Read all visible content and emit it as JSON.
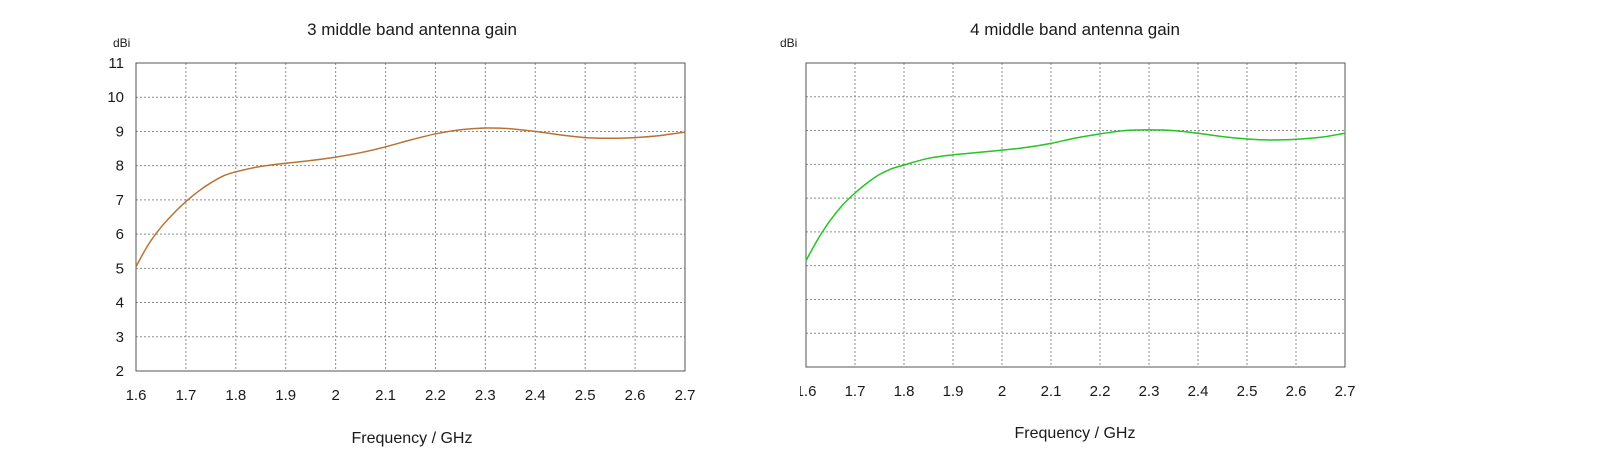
{
  "chart_data": [
    {
      "type": "line",
      "title": "3 middle band antenna gain",
      "ylabel": "dBi",
      "xlabel": "Frequency / GHz",
      "xlim": [
        1.6,
        2.7
      ],
      "ylim": [
        2,
        11
      ],
      "xticks": [
        "1.6",
        "1.7",
        "1.8",
        "1.9",
        "2",
        "2.1",
        "2.2",
        "2.3",
        "2.4",
        "2.5",
        "2.6",
        "2.7"
      ],
      "yticks": [
        "2",
        "3",
        "4",
        "5",
        "6",
        "7",
        "8",
        "9",
        "10",
        "11"
      ],
      "grid": true,
      "line_color": "#b87333",
      "series": [
        {
          "x": [
            1.6,
            1.625,
            1.65,
            1.675,
            1.7,
            1.725,
            1.75,
            1.775,
            1.8,
            1.85,
            1.9,
            1.95,
            2.0,
            2.05,
            2.1,
            2.15,
            2.2,
            2.25,
            2.3,
            2.35,
            2.4,
            2.45,
            2.5,
            2.55,
            2.6,
            2.65,
            2.7
          ],
          "y": [
            5.05,
            5.7,
            6.2,
            6.6,
            6.95,
            7.25,
            7.5,
            7.7,
            7.82,
            7.98,
            8.07,
            8.15,
            8.25,
            8.38,
            8.55,
            8.75,
            8.93,
            9.05,
            9.1,
            9.08,
            9.0,
            8.9,
            8.82,
            8.8,
            8.82,
            8.88,
            8.98
          ]
        }
      ]
    },
    {
      "type": "line",
      "title": "4 middle band antenna gain",
      "ylabel": "dBi",
      "xlabel": "Frequency / GHz",
      "xlim": [
        1.6,
        2.7
      ],
      "ylim": [
        2,
        11
      ],
      "xticks": [
        "1.6",
        "1.7",
        "1.8",
        "1.9",
        "2",
        "2.1",
        "2.2",
        "2.3",
        "2.4",
        "2.5",
        "2.6",
        "2.7"
      ],
      "yticks": [
        "2",
        "3",
        "4",
        "5",
        "6",
        "7",
        "8",
        "9",
        "10",
        "11"
      ],
      "grid": true,
      "line_color": "#22c522",
      "series": [
        {
          "x": [
            1.6,
            1.625,
            1.65,
            1.675,
            1.7,
            1.725,
            1.75,
            1.775,
            1.8,
            1.85,
            1.9,
            1.95,
            2.0,
            2.05,
            2.1,
            2.15,
            2.2,
            2.25,
            2.3,
            2.35,
            2.4,
            2.45,
            2.5,
            2.55,
            2.6,
            2.65,
            2.7
          ],
          "y": [
            5.15,
            5.8,
            6.35,
            6.8,
            7.15,
            7.45,
            7.7,
            7.87,
            7.98,
            8.18,
            8.28,
            8.35,
            8.42,
            8.5,
            8.62,
            8.78,
            8.9,
            9.0,
            9.02,
            9.0,
            8.92,
            8.82,
            8.75,
            8.72,
            8.74,
            8.8,
            8.92
          ]
        }
      ]
    }
  ]
}
